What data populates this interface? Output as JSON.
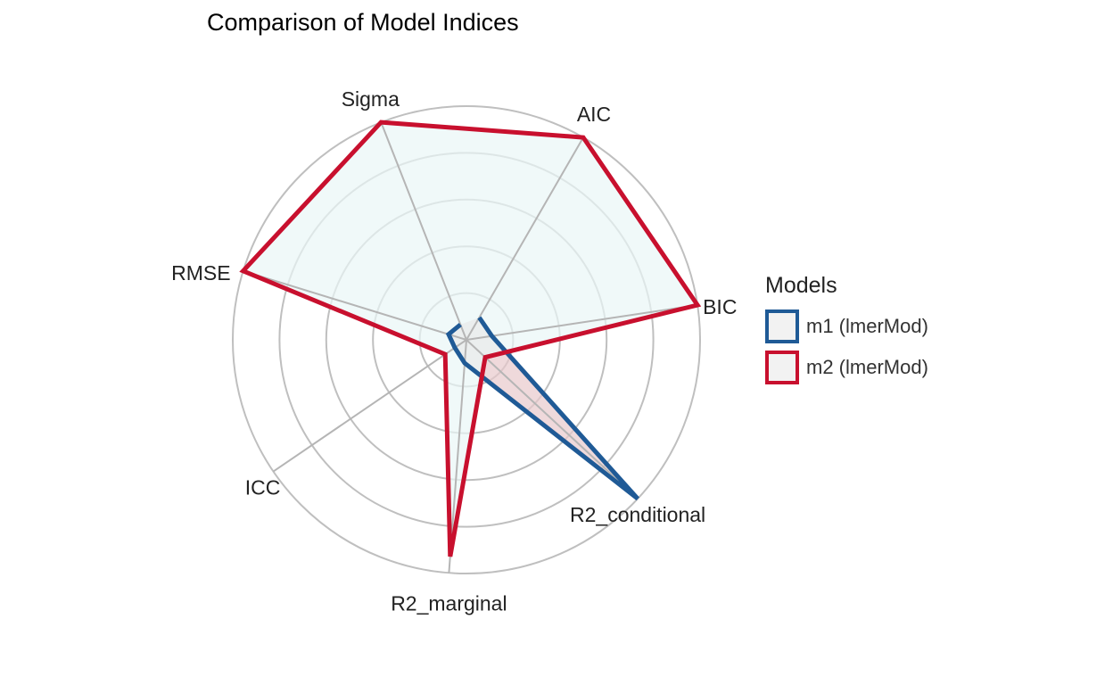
{
  "chart_data": {
    "type": "radar",
    "title": "Comparison of Model Indices",
    "axes": [
      "AIC",
      "BIC",
      "R2_conditional",
      "R2_marginal",
      "ICC",
      "RMSE",
      "Sigma"
    ],
    "rmax": 1,
    "grid": [
      0.2,
      0.4,
      0.6,
      0.8,
      1.0
    ],
    "series": [
      {
        "name": "m1 (lmerMod)",
        "color": "#1f5a96",
        "fill": "#e8c9cc",
        "values": [
          0.11,
          0.11,
          1.0,
          0.1,
          0.06,
          0.08,
          0.07
        ],
        "close": false
      },
      {
        "name": "m2 (lmerMod)",
        "color": "#c8102e",
        "fill": "#eaf7f7",
        "values": [
          1.0,
          1.0,
          0.11,
          0.93,
          0.11,
          1.0,
          1.0
        ],
        "close": true
      }
    ],
    "legend": {
      "title": "Models",
      "position": "right"
    }
  }
}
